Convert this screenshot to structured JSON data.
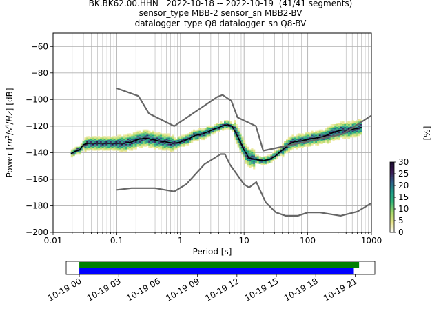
{
  "title": {
    "line1": "BK.BK62.00.HHN   2022-10-18 -- 2022-10-19  (41/41 segments)",
    "line2": "sensor_type MBB-2 sensor_sn MBB2-BV",
    "line3": "datalogger_type Q8 datalogger_sn Q8-BV"
  },
  "chart_data": [
    {
      "type": "heatmap",
      "xlabel": "Period [s]",
      "ylabel_parts": [
        "Power [",
        "m",
        "2",
        "/",
        "s",
        "4",
        "/",
        "Hz",
        "] [dB]"
      ],
      "x_scale": "log",
      "xlim": [
        0.01,
        1000
      ],
      "ylim": [
        -200,
        -50
      ],
      "xtick_labels": [
        "0.01",
        "0.1",
        "1",
        "10",
        "100",
        "1000"
      ],
      "xtick_values": [
        0.01,
        0.1,
        1,
        10,
        100,
        1000
      ],
      "ytick_values": [
        -60,
        -80,
        -100,
        -120,
        -140,
        -160,
        -180,
        -200
      ],
      "ytick_labels": [
        "−60",
        "−80",
        "−100",
        "−120",
        "−140",
        "−160",
        "−180",
        "−200"
      ],
      "grid": true,
      "colorbar": {
        "label": "[%]",
        "min": 0,
        "max": 30,
        "ticks": [
          0,
          5,
          10,
          15,
          20,
          25,
          30
        ],
        "tick_labels": [
          "0",
          "5",
          "10",
          "15",
          "20",
          "25",
          "30"
        ],
        "colors": [
          "#ffffff",
          "#e8e48a",
          "#a6d96a",
          "#35b779",
          "#1f9e89",
          "#2f5f8a",
          "#3b1a55",
          "#1a0a2e"
        ]
      },
      "series": [
        {
          "role": "mean",
          "color": "#000000",
          "x": [
            0.019,
            0.022,
            0.026,
            0.03,
            0.035,
            0.045,
            0.06,
            0.08,
            0.1,
            0.13,
            0.17,
            0.22,
            0.28,
            0.35,
            0.45,
            0.6,
            0.8,
            1.0,
            1.3,
            1.7,
            2.2,
            2.8,
            3.5,
            4.5,
            5.5,
            6.5,
            8.0,
            10,
            12,
            15,
            20,
            25,
            30,
            40,
            50,
            60,
            80,
            100,
            130,
            170,
            220,
            280,
            350,
            450,
            550,
            700
          ],
          "y": [
            -141,
            -139,
            -138,
            -134,
            -133,
            -133,
            -133,
            -133,
            -133,
            -133,
            -132,
            -130,
            -129,
            -130,
            -131,
            -132,
            -133,
            -132,
            -130,
            -127,
            -126,
            -124,
            -122,
            -120,
            -119,
            -120,
            -128,
            -138,
            -144,
            -145,
            -146,
            -145,
            -143,
            -138,
            -134,
            -132,
            -131,
            -130,
            -129,
            -128,
            -126,
            -124,
            -123,
            -123,
            -122,
            -121
          ]
        },
        {
          "role": "nhnm",
          "color": "#666666",
          "x": [
            0.1,
            0.22,
            0.32,
            0.8,
            3.8,
            4.6,
            6.3,
            7.9,
            15.4,
            20,
            354.8,
            1000
          ],
          "y": [
            -91.5,
            -97.4,
            -110.5,
            -120,
            -98,
            -96.5,
            -101,
            -113.5,
            -120,
            -138.5,
            -126,
            -112
          ]
        },
        {
          "role": "nlnm",
          "color": "#666666",
          "x": [
            0.1,
            0.17,
            0.4,
            0.8,
            1.24,
            2.4,
            4.3,
            5.0,
            6.0,
            10,
            12,
            15.6,
            21.9,
            31.6,
            45,
            70,
            101,
            154,
            328,
            600,
            1000
          ],
          "y": [
            -168,
            -166.7,
            -166.7,
            -169.2,
            -163.7,
            -148.6,
            -141.1,
            -141.1,
            -149,
            -163.8,
            -166.2,
            -162.1,
            -177.5,
            -185,
            -187.5,
            -187.5,
            -185,
            -185,
            -187.5,
            -184.4,
            -178
          ]
        }
      ],
      "histogram_bands": [
        {
          "x": [
            0.019,
            0.03
          ],
          "y_center": -139,
          "spread": 3
        },
        {
          "x": [
            0.03,
            0.1
          ],
          "y_center": -135,
          "spread": 5
        },
        {
          "x": [
            0.1,
            0.8
          ],
          "y_center": -132,
          "spread": 6
        },
        {
          "x": [
            0.8,
            3.0
          ],
          "y_center": -128,
          "spread": 4
        },
        {
          "x": [
            3.0,
            7.0
          ],
          "y_center": -121,
          "spread": 3
        },
        {
          "x": [
            7.0,
            15
          ],
          "y_center": -135,
          "spread": 7
        },
        {
          "x": [
            15,
            40
          ],
          "y_center": -145,
          "spread": 3
        },
        {
          "x": [
            40,
            200
          ],
          "y_center": -131,
          "spread": 5
        },
        {
          "x": [
            200,
            700
          ],
          "y_center": -124,
          "spread": 6
        }
      ]
    },
    {
      "type": "timeline",
      "tick_labels": [
        "10-19 00",
        "10-19 03",
        "10-19 06",
        "10-19 09",
        "10-19 12",
        "10-19 15",
        "10-19 18",
        "10-19 21"
      ],
      "tick_hours": [
        0,
        3,
        6,
        9,
        12,
        15,
        18,
        21
      ],
      "xlim_hours": [
        -1.0,
        22.5
      ],
      "bars": [
        {
          "color": "#008000",
          "start_hours": 0.0,
          "end_hours": 21.3
        },
        {
          "color": "#0000ff",
          "start_hours": 0.0,
          "end_hours": 20.9
        }
      ]
    }
  ]
}
